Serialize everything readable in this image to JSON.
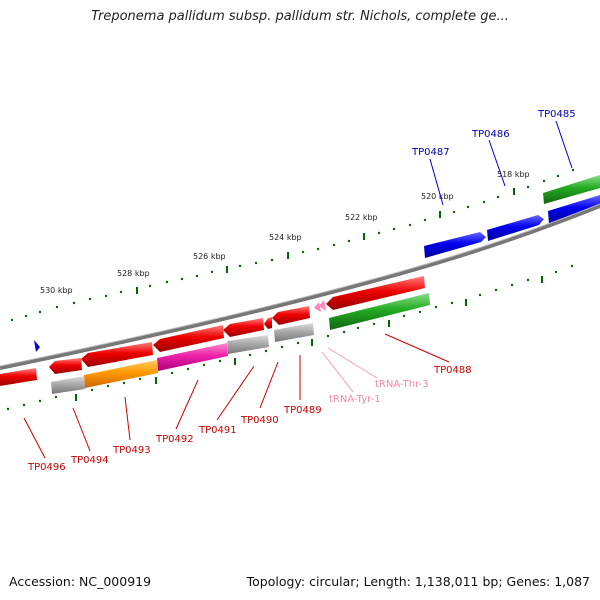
{
  "title": "Treponema pallidum subsp. pallidum str. Nichols, complete ge...",
  "footer": {
    "accession": "Accession: NC_000919",
    "topology": "Topology: circular; Length: 1,138,011 bp; Genes: 1,087"
  },
  "scale_labels": [
    "518 kbp",
    "520 kbp",
    "522 kbp",
    "524 kbp",
    "526 kbp",
    "528 kbp",
    "530 kbp"
  ],
  "gene_labels": [
    {
      "text": "TP0485",
      "color": "#0000bb"
    },
    {
      "text": "TP0486",
      "color": "#0000bb"
    },
    {
      "text": "TP0487",
      "color": "#0000bb"
    },
    {
      "text": "TP0488",
      "color": "#cc0000"
    },
    {
      "text": "TP0489",
      "color": "#cc0000"
    },
    {
      "text": "TP0490",
      "color": "#cc0000"
    },
    {
      "text": "TP0491",
      "color": "#cc0000"
    },
    {
      "text": "TP0492",
      "color": "#cc0000"
    },
    {
      "text": "TP0493",
      "color": "#cc0000"
    },
    {
      "text": "TP0494",
      "color": "#cc0000"
    },
    {
      "text": "TP0496",
      "color": "#cc0000"
    },
    {
      "text": "tRNA-Thr-3",
      "color": "#ee88aa"
    },
    {
      "text": "tRNA-Tyr-1",
      "color": "#ee88aa"
    }
  ],
  "colors": {
    "forward_cds": "#0000ee",
    "reverse_cds": "#ee0000",
    "rna": "#22aa22",
    "trna": "#ff88bb",
    "cog_unknown": "#aaaaaa",
    "cog_orange": "#ff9900",
    "cog_magenta": "#ee22aa",
    "backbone": "#777777",
    "ticks": "#006600"
  }
}
